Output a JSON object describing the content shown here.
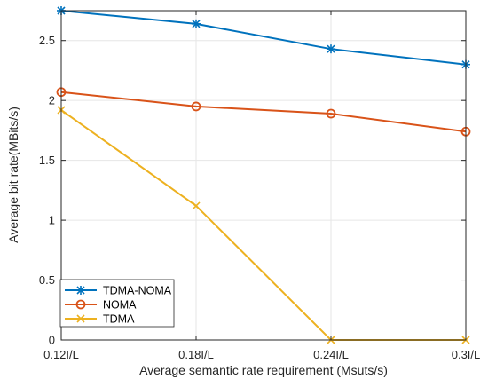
{
  "chart_data": {
    "type": "line",
    "title": "",
    "xlabel": "Average semantic rate requirement (Msuts/s)",
    "ylabel": "Average bit rate(MBits/s)",
    "categories": [
      "0.12I/L",
      "0.18I/L",
      "0.24I/L",
      "0.3I/L"
    ],
    "ylim": [
      0,
      2.75
    ],
    "yticks": [
      "0",
      "0.5",
      "1",
      "1.5",
      "2",
      "2.5"
    ],
    "grid": true,
    "legend_position": "bottom-left",
    "series": [
      {
        "name": "TDMA-NOMA",
        "values": [
          2.75,
          2.64,
          2.43,
          2.3
        ],
        "color": "#0072BD",
        "marker": "asterisk"
      },
      {
        "name": "NOMA",
        "values": [
          2.07,
          1.95,
          1.89,
          1.74
        ],
        "color": "#D95319",
        "marker": "circle"
      },
      {
        "name": "TDMA",
        "values": [
          1.92,
          1.12,
          0.0,
          0.0
        ],
        "color": "#EDB120",
        "marker": "x"
      }
    ]
  }
}
